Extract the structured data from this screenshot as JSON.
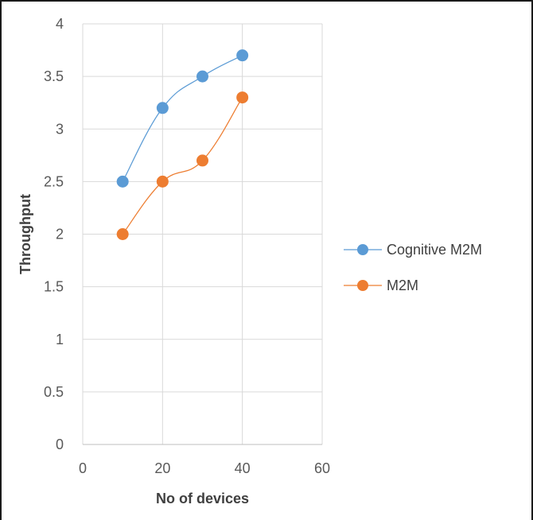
{
  "chart_data": {
    "type": "line",
    "title": "",
    "xlabel": "No of devices",
    "ylabel": "Throughput",
    "xlim": [
      0,
      60
    ],
    "ylim": [
      0,
      4
    ],
    "x_ticks": [
      "0",
      "20",
      "40",
      "60"
    ],
    "y_ticks": [
      "0",
      "0.5",
      "1",
      "1.5",
      "2",
      "2.5",
      "3",
      "3.5",
      "4"
    ],
    "grid": true,
    "smooth": true,
    "legend_position": "right",
    "series": [
      {
        "name": "Cognitive M2M",
        "color": "#5b9bd5",
        "x": [
          10,
          20,
          30,
          40
        ],
        "y": [
          2.5,
          3.2,
          3.5,
          3.7
        ]
      },
      {
        "name": "M2M",
        "color": "#ed7d31",
        "x": [
          10,
          20,
          30,
          40
        ],
        "y": [
          2.0,
          2.5,
          2.7,
          3.3
        ]
      }
    ]
  }
}
